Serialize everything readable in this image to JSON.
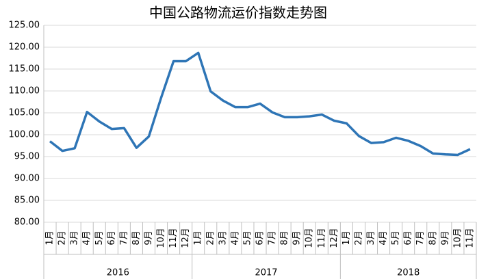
{
  "chart_data": {
    "type": "line",
    "title": "中国公路物流运价指数走势图",
    "categories": [
      "1月",
      "2月",
      "3月",
      "4月",
      "5月",
      "6月",
      "7月",
      "8月",
      "9月",
      "10月",
      "11月",
      "12月",
      "1月",
      "2月",
      "3月",
      "4月",
      "5月",
      "6月",
      "7月",
      "8月",
      "9月",
      "10月",
      "11月",
      "12月",
      "1月",
      "2月",
      "3月",
      "4月",
      "5月",
      "6月",
      "7月",
      "8月",
      "9月",
      "10月",
      "11月"
    ],
    "category_groups": [
      {
        "label": "2016",
        "size": 12
      },
      {
        "label": "2017",
        "size": 12
      },
      {
        "label": "2018",
        "size": 11
      }
    ],
    "series": [
      {
        "name": "中国公路物流运价指数",
        "color": "#2e75b6",
        "values": [
          98.5,
          96.3,
          96.9,
          105.2,
          103.0,
          101.3,
          101.5,
          97.0,
          99.6,
          108.5,
          116.8,
          116.8,
          118.7,
          109.9,
          107.8,
          106.3,
          106.3,
          107.1,
          105.1,
          104.0,
          104.0,
          104.2,
          104.6,
          103.2,
          102.6,
          99.7,
          98.1,
          98.3,
          99.3,
          98.6,
          97.4,
          95.7,
          95.5,
          95.4,
          96.7
        ]
      }
    ],
    "ylim": [
      80,
      125
    ],
    "yticks": [
      {
        "value": 80,
        "label": "80.00"
      },
      {
        "value": 85,
        "label": "85.00"
      },
      {
        "value": 90,
        "label": "90.00"
      },
      {
        "value": 95,
        "label": "95.00"
      },
      {
        "value": 100,
        "label": "100.00"
      },
      {
        "value": 105,
        "label": "105.00"
      },
      {
        "value": 110,
        "label": "110.00"
      },
      {
        "value": 115,
        "label": "115.00"
      },
      {
        "value": 120,
        "label": "120.00"
      },
      {
        "value": 125,
        "label": "125.00"
      }
    ],
    "grid": true
  }
}
